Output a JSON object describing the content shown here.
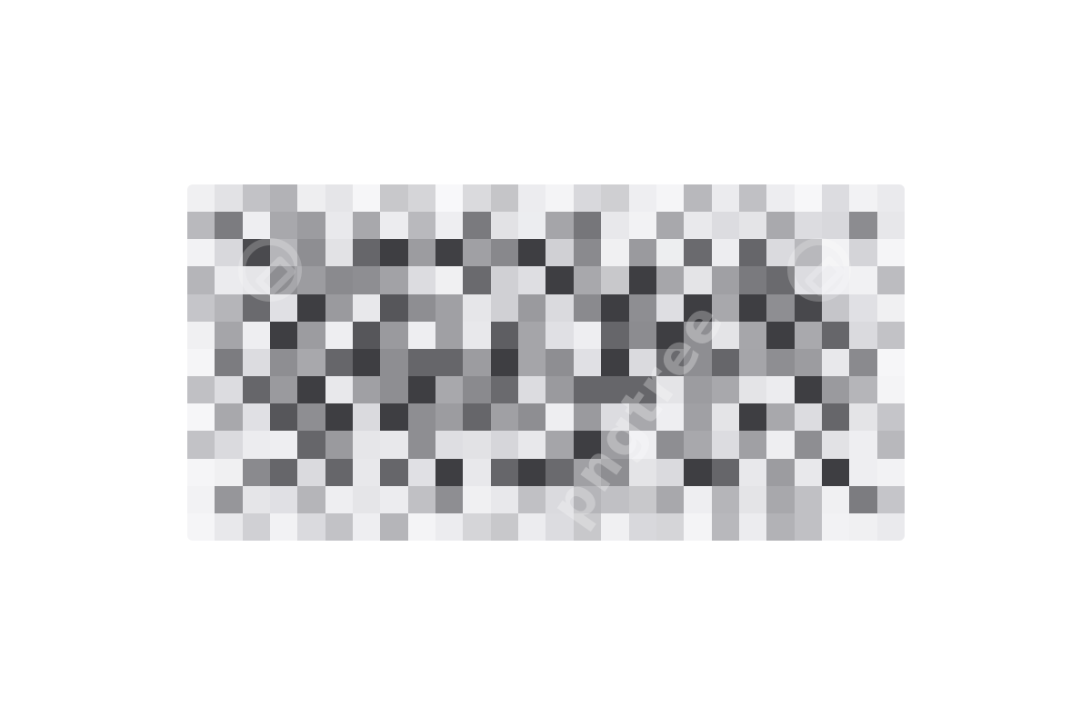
{
  "image": {
    "subject": "pixelated-censor-mosaic",
    "background_color": "#ffffff",
    "grid": {
      "columns": 26,
      "rows": 13,
      "colors": [
        [
          "#f0f0f2",
          "#e2e2e5",
          "#c2c2c6",
          "#b2b2b6",
          "#eeeef0",
          "#e5e5e8",
          "#f6f6f8",
          "#c8c8cb",
          "#d5d5d8",
          "#f8f8fa",
          "#dadadd",
          "#c5c5c8",
          "#ececef",
          "#f4f4f6",
          "#d8d8dc",
          "#cfcfd2",
          "#eeeef1",
          "#f5f5f7",
          "#b8b8bc",
          "#ebebee",
          "#c0c0c4",
          "#ededf0",
          "#f7f7f9",
          "#dcdce0",
          "#f2f2f4",
          "#eaeaed"
        ],
        [
          "#b9b9bd",
          "#7c7c80",
          "#eeeef1",
          "#a8a8ac",
          "#9c9ca0",
          "#e9e9ec",
          "#a8a8ac",
          "#ececef",
          "#b9b9bd",
          "#eeeef1",
          "#7a7a7e",
          "#e2e2e5",
          "#ecedf0",
          "#a5a5a9",
          "#76767a",
          "#e8e8eb",
          "#f2f2f4",
          "#a8a8ac",
          "#e9e9ec",
          "#dcdce0",
          "#e4e4e7",
          "#a9a9ad",
          "#dcdce0",
          "#d8d8dc",
          "#8c8c90",
          "#e7e7ea"
        ],
        [
          "#f2f2f4",
          "#d8d8dc",
          "#4a4a4e",
          "#b5b5b9",
          "#8e8e92",
          "#e2e2e5",
          "#66666a",
          "#3e3e42",
          "#9c9ca0",
          "#404044",
          "#a0a0a4",
          "#88888c",
          "#3e3e42",
          "#d0d0d4",
          "#8a8a8e",
          "#f0f0f2",
          "#9a9a9e",
          "#edeef0",
          "#6a6a6e",
          "#ededf0",
          "#66666a",
          "#dadade",
          "#b8b8bc",
          "#f2f2f4",
          "#d4d4d8",
          "#f5f5f7"
        ],
        [
          "#b5b5b9",
          "#ebebee",
          "#e5e5e8",
          "#8e8e92",
          "#9c9ca0",
          "#8a8a8e",
          "#8e8e92",
          "#a2a2a6",
          "#dcdce0",
          "#f0f0f2",
          "#6a6a6e",
          "#d0d0d4",
          "#dedee2",
          "#3e3e42",
          "#a8a8ac",
          "#c8c8cb",
          "#3e3e42",
          "#a6a6aa",
          "#e4e4e7",
          "#a0a0a4",
          "#7a7a7e",
          "#6a6a6e",
          "#dcdce0",
          "#eeeef1",
          "#f1f1f3",
          "#bcbcc0"
        ],
        [
          "#c5c5c9",
          "#b5b5b9",
          "#6a6a6e",
          "#e0e0e4",
          "#3e3e42",
          "#9a9a9e",
          "#e8e8eb",
          "#56565a",
          "#8e8e92",
          "#a0a0a4",
          "#e6e6e9",
          "#d0d0d4",
          "#9a9a9e",
          "#dadade",
          "#8a8a8e",
          "#3e3e42",
          "#8e8e92",
          "#dedee2",
          "#3e3e42",
          "#a8a8ac",
          "#3e3e42",
          "#8e8e92",
          "#48484c",
          "#c5c5c9",
          "#e0e0e4",
          "#f0f0f2"
        ],
        [
          "#f0f0f2",
          "#a5a5a9",
          "#eeeef1",
          "#3e3e42",
          "#9c9ca0",
          "#eeeef1",
          "#56565a",
          "#9a9a9e",
          "#eeeef1",
          "#a0a0a4",
          "#e8e8eb",
          "#5e5e62",
          "#a5a5a9",
          "#e0e0e4",
          "#eeeef1",
          "#66666a",
          "#8c8c90",
          "#3e3e42",
          "#8e8e92",
          "#e4e4e7",
          "#a6a6aa",
          "#3e3e42",
          "#a9a9ad",
          "#66666a",
          "#dadade",
          "#c2c2c6"
        ],
        [
          "#f5f5f7",
          "#7c7c80",
          "#dcdce0",
          "#8e8e92",
          "#a8a8ac",
          "#66666a",
          "#3e3e42",
          "#8e8e92",
          "#66666a",
          "#66666a",
          "#9c9ca0",
          "#3e3e42",
          "#a5a5a9",
          "#8e8e92",
          "#e0e0e4",
          "#3e3e42",
          "#dadade",
          "#6a6a6e",
          "#8e8e92",
          "#66666a",
          "#a5a5a9",
          "#8e8e92",
          "#9c9ca0",
          "#e8e8eb",
          "#8a8a8e",
          "#f6f6f8"
        ],
        [
          "#c0c0c4",
          "#dcdce0",
          "#66666a",
          "#9a9a9e",
          "#3e3e42",
          "#e8e8eb",
          "#a0a0a4",
          "#8e8e92",
          "#3e3e42",
          "#a8a8ac",
          "#8a8a8e",
          "#6a6a6e",
          "#dcdce0",
          "#9a9a9e",
          "#66666a",
          "#66666a",
          "#66666a",
          "#e4e4e7",
          "#9c9ca0",
          "#a8a8ac",
          "#e4e4e7",
          "#ececef",
          "#3e3e42",
          "#9a9a9e",
          "#b5b5b9",
          "#f4f4f6"
        ],
        [
          "#f6f6f8",
          "#a8a8ac",
          "#e0e0e4",
          "#56565a",
          "#8e8e92",
          "#3e3e42",
          "#dadade",
          "#3e3e42",
          "#8e8e92",
          "#9c9ca0",
          "#66666a",
          "#a0a0a4",
          "#8e8e92",
          "#eeeef1",
          "#9a9a9e",
          "#dcdce0",
          "#a8a8ac",
          "#eeeef1",
          "#a0a0a4",
          "#e4e4e7",
          "#3e3e42",
          "#a8a8ac",
          "#dcdce0",
          "#66666a",
          "#e4e4e7",
          "#c5c5c9"
        ],
        [
          "#c2c2c6",
          "#dadade",
          "#ececef",
          "#eeeef1",
          "#66666a",
          "#9a9a9e",
          "#e6e6e9",
          "#e8e8eb",
          "#8e8e92",
          "#dedee2",
          "#e2e2e5",
          "#d6d6da",
          "#e8e8eb",
          "#a5a5a9",
          "#3e3e42",
          "#9c9ca0",
          "#eeeef1",
          "#8e8e92",
          "#a8a8ac",
          "#dcdce0",
          "#a0a0a4",
          "#eeeef1",
          "#8e8e92",
          "#e2e2e5",
          "#eeeef1",
          "#b8b8bc"
        ],
        [
          "#f5f5f7",
          "#f0f0f2",
          "#8a8a8e",
          "#66666a",
          "#dadade",
          "#66666a",
          "#e8e8eb",
          "#66666a",
          "#e0e0e4",
          "#3e3e42",
          "#e8e8eb",
          "#66666a",
          "#3e3e42",
          "#6a6a6e",
          "#a0a0a4",
          "#8e8e92",
          "#e4e4e7",
          "#dadade",
          "#3e3e42",
          "#66666a",
          "#e8e8eb",
          "#9c9ca0",
          "#e8e8eb",
          "#3e3e42",
          "#eeeef1",
          "#f2f2f4"
        ],
        [
          "#f2f2f4",
          "#96969a",
          "#e5e5e8",
          "#e0e0e4",
          "#b5b5b9",
          "#eeeef1",
          "#e5e5e8",
          "#ececef",
          "#c0c0c4",
          "#8e8e92",
          "#f0f0f2",
          "#e8e8eb",
          "#c0c0c4",
          "#dadade",
          "#b5b5b9",
          "#c0c0c4",
          "#c8c8cb",
          "#a8a8ac",
          "#eeeef1",
          "#b5b5b9",
          "#e4e4e7",
          "#a8a8ac",
          "#c0c0c4",
          "#f0f0f2",
          "#7c7c80",
          "#c5c5c9"
        ],
        [
          "#f5f5f7",
          "#e8e8eb",
          "#d0d0d4",
          "#f2f2f4",
          "#dadade",
          "#c2c2c6",
          "#eeeef1",
          "#b5b5b9",
          "#f4f4f6",
          "#ececef",
          "#d5d5d8",
          "#c8c8cb",
          "#ececef",
          "#dcdce0",
          "#c8c8cb",
          "#f0f0f2",
          "#d8d8dc",
          "#d5d5d8",
          "#f4f4f6",
          "#b8b8bc",
          "#ececef",
          "#b2b2b6",
          "#c0c0c4",
          "#f2f2f4",
          "#f0f0f2",
          "#eaeaed"
        ]
      ]
    },
    "watermark_text": "pngtree",
    "watermark_badge_icon": "pngtree-logo-icon"
  }
}
